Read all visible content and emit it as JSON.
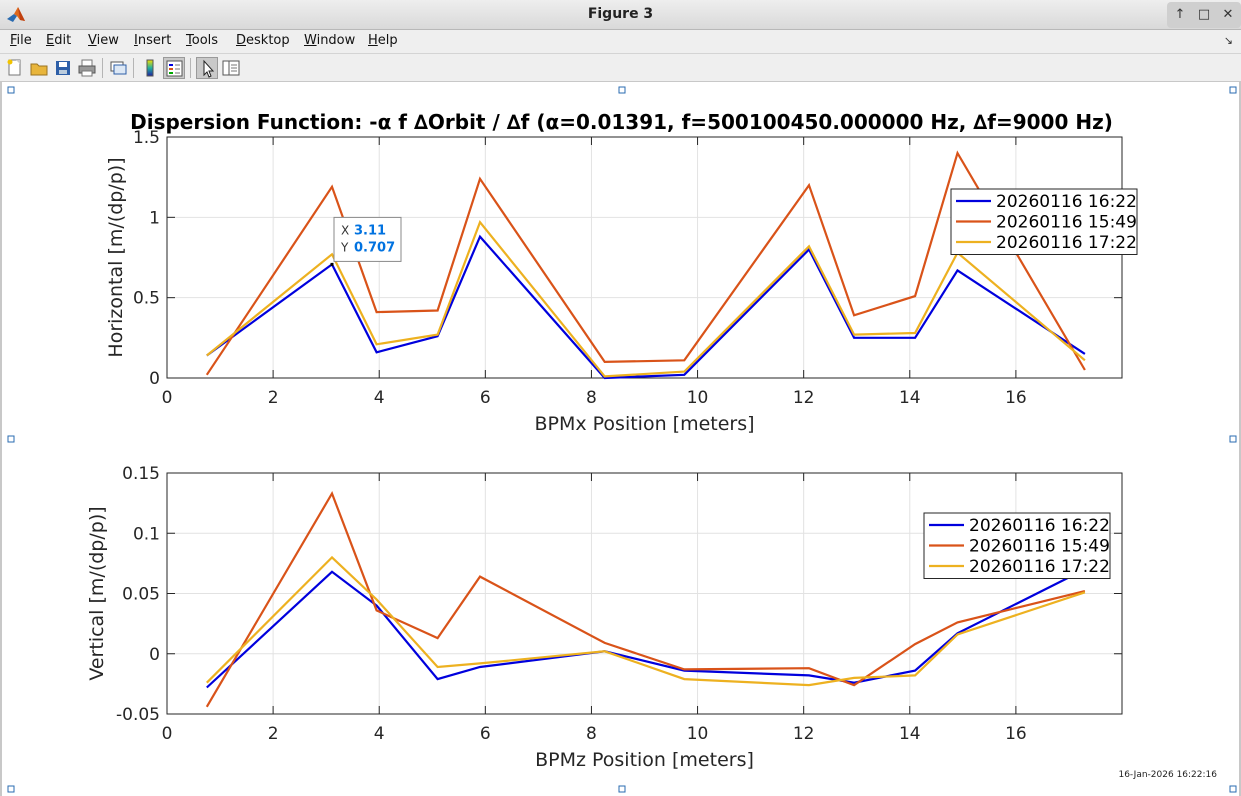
{
  "window": {
    "title": "Figure 3",
    "controls": {
      "minimize": "↑",
      "maximize": "□",
      "close": "✕"
    }
  },
  "menu": [
    {
      "key": "F",
      "rest": "ile"
    },
    {
      "key": "E",
      "rest": "dit"
    },
    {
      "key": "V",
      "rest": "iew"
    },
    {
      "key": "I",
      "rest": "nsert"
    },
    {
      "key": "T",
      "rest": "ools"
    },
    {
      "key": "D",
      "rest": "esktop"
    },
    {
      "key": "W",
      "rest": "indow"
    },
    {
      "key": "H",
      "rest": "elp"
    }
  ],
  "toolbar": {
    "icons": [
      "new-figure-icon",
      "open-file-icon",
      "save-icon",
      "print-icon",
      "link-plot-icon",
      "colorbar-icon",
      "legend-icon",
      "edit-plot-icon",
      "property-inspector-icon"
    ],
    "pressed": [
      "legend-icon",
      "edit-plot-icon"
    ]
  },
  "timestamp": "16-Jan-2026 16:22:16",
  "colors": {
    "blue": "#0000dd",
    "red": "#d95319",
    "yellow": "#edb120",
    "datatip": "#0072e0"
  },
  "chart_data": [
    {
      "type": "line",
      "title": "Dispersion Function: -α f ∆Orbit / ∆f  (α=0.01391, f=500100450.000000 Hz, ∆f=9000 Hz)",
      "xlabel": "BPMx Position [meters]",
      "ylabel": "Horizontal [m/(dp/p)]",
      "xlim": [
        0,
        18
      ],
      "ylim": [
        0,
        1.5
      ],
      "xticks": [
        0,
        2,
        4,
        6,
        8,
        10,
        12,
        14,
        16
      ],
      "yticks": [
        0,
        0.5,
        1,
        1.5
      ],
      "ytick_labels": [
        "0",
        "0.5",
        "1",
        "1.5"
      ],
      "grid": true,
      "legend": "top-right",
      "x": [
        0.75,
        3.11,
        3.95,
        5.1,
        5.9,
        8.25,
        9.75,
        12.1,
        12.95,
        14.1,
        14.9,
        17.3
      ],
      "series": [
        {
          "name": "20260116 16:22",
          "color": "#0000dd",
          "values": [
            0.14,
            0.707,
            0.16,
            0.26,
            0.88,
            0.0,
            0.02,
            0.8,
            0.25,
            0.25,
            0.67,
            0.15
          ]
        },
        {
          "name": "20260116 15:49",
          "color": "#d95319",
          "values": [
            0.02,
            1.19,
            0.41,
            0.42,
            1.24,
            0.1,
            0.11,
            1.2,
            0.39,
            0.51,
            1.4,
            0.05
          ]
        },
        {
          "name": "20260116 17:22",
          "color": "#edb120",
          "values": [
            0.14,
            0.77,
            0.21,
            0.27,
            0.97,
            0.01,
            0.04,
            0.82,
            0.27,
            0.28,
            0.78,
            0.11
          ]
        }
      ],
      "datatip": {
        "x_label": "X",
        "x_value": "3.11",
        "y_label": "Y",
        "y_value": "0.707",
        "x": 3.11,
        "y": 0.707
      }
    },
    {
      "type": "line",
      "title": "",
      "xlabel": "BPMz Position [meters]",
      "ylabel": "Vertical [m/(dp/p)]",
      "xlim": [
        0,
        18
      ],
      "ylim": [
        -0.05,
        0.15
      ],
      "xticks": [
        0,
        2,
        4,
        6,
        8,
        10,
        12,
        14,
        16
      ],
      "yticks": [
        -0.05,
        0,
        0.05,
        0.1,
        0.15
      ],
      "ytick_labels": [
        "-0.05",
        "0",
        "0.05",
        "0.1",
        "0.15"
      ],
      "grid": true,
      "legend": "top-right",
      "x": [
        0.75,
        3.11,
        3.95,
        5.1,
        5.9,
        8.25,
        9.75,
        12.1,
        12.95,
        14.1,
        14.9,
        17.3
      ],
      "series": [
        {
          "name": "20260116 16:22",
          "color": "#0000dd",
          "values": [
            -0.028,
            0.068,
            0.04,
            -0.021,
            -0.011,
            0.002,
            -0.014,
            -0.018,
            -0.024,
            -0.014,
            0.017,
            0.07
          ]
        },
        {
          "name": "20260116 15:49",
          "color": "#d95319",
          "values": [
            -0.044,
            0.133,
            0.036,
            0.013,
            0.064,
            0.009,
            -0.013,
            -0.012,
            -0.026,
            0.008,
            0.026,
            0.052
          ]
        },
        {
          "name": "20260116 17:22",
          "color": "#edb120",
          "values": [
            -0.024,
            0.08,
            0.045,
            -0.011,
            -0.008,
            0.002,
            -0.021,
            -0.026,
            -0.02,
            -0.018,
            0.016,
            0.051
          ]
        }
      ]
    }
  ]
}
